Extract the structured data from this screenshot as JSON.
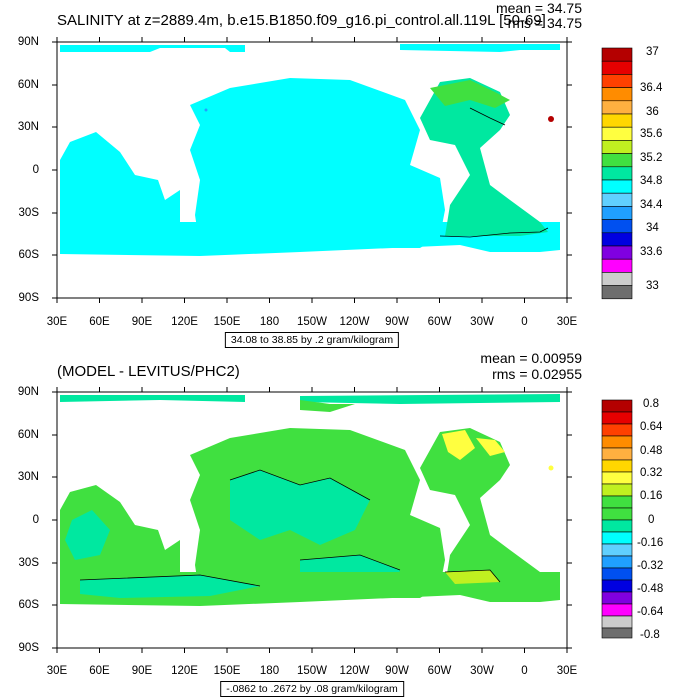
{
  "panels": [
    {
      "title": "SALINITY at z=2889.4m, b.e15.B1850.f09_g16.pi_control.all.119L [50-69]",
      "mean": "mean = 34.75",
      "rms": "rms = 34.75",
      "info": "34.08 to 38.85 by .2 gram/kilogram",
      "lat_labels": [
        "90N",
        "60N",
        "30N",
        "0",
        "30S",
        "60S",
        "90S"
      ],
      "lon_labels": [
        "30E",
        "60E",
        "90E",
        "120E",
        "150E",
        "180",
        "150W",
        "120W",
        "90W",
        "60W",
        "30W",
        "0",
        "30E"
      ],
      "colorbar_labels": [
        "37",
        "36.4",
        "36",
        "35.6",
        "35.2",
        "34.8",
        "34.4",
        "34",
        "33.6",
        "33"
      ],
      "colorbar_colors": [
        "#b40000",
        "#e60000",
        "#ff4000",
        "#ff8c00",
        "#ffb040",
        "#ffd700",
        "#ffff40",
        "#c0f020",
        "#40e040",
        "#00e8a0",
        "#00ffff",
        "#60d0ff",
        "#20a0ff",
        "#0050f0",
        "#0000e0",
        "#8000e0",
        "#ff00ff",
        "#cccccc",
        "#6e6e6e"
      ],
      "field_color": "#00ffff",
      "atlantic_color": "#00e8a0"
    },
    {
      "title": "(MODEL - LEVITUS/PHC2)",
      "mean": "mean = 0.00959",
      "rms": "rms = 0.02955",
      "info": "-.0862 to .2672 by .08 gram/kilogram",
      "lat_labels": [
        "90N",
        "60N",
        "30N",
        "0",
        "30S",
        "60S",
        "90S"
      ],
      "lon_labels": [
        "30E",
        "60E",
        "90E",
        "120E",
        "150E",
        "180",
        "150W",
        "120W",
        "90W",
        "60W",
        "30W",
        "0",
        "30E"
      ],
      "colorbar_labels": [
        "0.8",
        "0.64",
        "0.48",
        "0.32",
        "0.16",
        "0",
        "-0.16",
        "-0.32",
        "-0.48",
        "-0.64",
        "-0.8"
      ],
      "colorbar_colors": [
        "#b40000",
        "#e60000",
        "#ff4000",
        "#ff8c00",
        "#ffb040",
        "#ffd700",
        "#ffff40",
        "#c0f020",
        "#40e040",
        "#00e8a0",
        "#00ffff",
        "#60d0ff",
        "#20a0ff",
        "#0050f0",
        "#0000e0",
        "#8000e0",
        "#ff00ff",
        "#cccccc",
        "#6e6e6e"
      ],
      "field_color": "#40e040",
      "secondary_color": "#00e8a0"
    }
  ]
}
